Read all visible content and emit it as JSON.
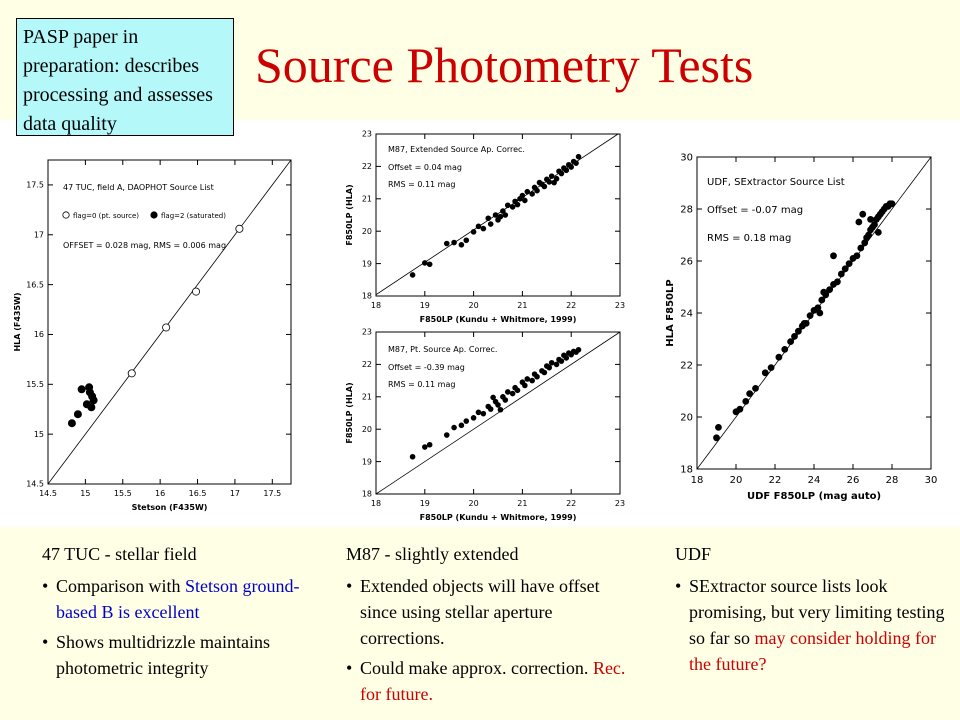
{
  "title": "Source Photometry Tests",
  "note": "PASP paper in preparation: describes processing and assesses data quality",
  "columns": [
    {
      "heading": "47 TUC - stellar field",
      "bullets": [
        {
          "parts": [
            {
              "text": "Comparison with "
            },
            {
              "text": "Stetson ground-based B is excellent",
              "color": "blue"
            }
          ]
        },
        {
          "parts": [
            {
              "text": "Shows multidrizzle maintains photometric integrity"
            }
          ]
        }
      ]
    },
    {
      "heading": "M87 - slightly extended",
      "bullets": [
        {
          "parts": [
            {
              "text": "Extended objects will have offset since using stellar aperture corrections."
            }
          ]
        },
        {
          "parts": [
            {
              "text": "Could make approx. correction. "
            },
            {
              "text": "Rec. for future.",
              "color": "red"
            }
          ]
        }
      ]
    },
    {
      "heading": "UDF",
      "bullets": [
        {
          "parts": [
            {
              "text": "SExtractor source lists look promising, but very limiting testing so far so "
            },
            {
              "text": "may consider holding for the future?",
              "color": "red"
            }
          ]
        }
      ]
    }
  ],
  "chart_data": [
    {
      "type": "scatter",
      "xlabel": "Stetson (F435W)",
      "ylabel": "HLA (F435W)",
      "xlim": [
        14.5,
        17.75
      ],
      "ylim": [
        14.5,
        17.75
      ],
      "xticks": [
        14.5,
        15,
        15.5,
        16,
        16.5,
        17,
        17.5
      ],
      "yticks": [
        14.5,
        15,
        15.5,
        16,
        16.5,
        17,
        17.5
      ],
      "annotations": [
        "47 TUC, field A, DAOPHOT Source List",
        "OFFSET = 0.028 mag, RMS = 0.006 mag"
      ],
      "legend": [
        "flag=0 (pt. source)",
        "flag=2 (saturated)"
      ],
      "series": [
        {
          "name": "flag=0 (pt. source)",
          "marker": "open",
          "points": [
            [
              15.62,
              15.61
            ],
            [
              16.08,
              16.07
            ],
            [
              16.48,
              16.43
            ],
            [
              17.06,
              17.06
            ]
          ]
        },
        {
          "name": "flag=2 (saturated)",
          "marker": "filled",
          "points": [
            [
              14.82,
              15.11
            ],
            [
              14.9,
              15.2
            ],
            [
              14.95,
              15.45
            ],
            [
              15.02,
              15.3
            ],
            [
              15.05,
              15.47
            ],
            [
              15.06,
              15.42
            ],
            [
              15.09,
              15.38
            ],
            [
              15.11,
              15.34
            ],
            [
              15.08,
              15.27
            ]
          ]
        }
      ]
    },
    {
      "type": "scatter",
      "xlabel": "F850LP (Kundu + Whitmore, 1999)",
      "ylabel": "F850LP (HLA)",
      "xlim": [
        18,
        23
      ],
      "ylim": [
        18,
        23
      ],
      "xticks": [
        18,
        19,
        20,
        21,
        22,
        23
      ],
      "yticks": [
        18,
        19,
        20,
        21,
        22,
        23
      ],
      "annotations": [
        "M87, Extended Source Ap. Correc.",
        "Offset = 0.04 mag",
        "RMS = 0.11 mag"
      ],
      "offset": 0.04,
      "series": [
        {
          "marker": "filled",
          "points": [
            [
              18.75,
              18.65
            ],
            [
              19.0,
              19.02
            ],
            [
              19.1,
              18.98
            ],
            [
              19.45,
              19.62
            ],
            [
              19.6,
              19.65
            ],
            [
              19.75,
              19.58
            ],
            [
              19.85,
              19.72
            ],
            [
              20.0,
              19.98
            ],
            [
              20.1,
              20.15
            ],
            [
              20.2,
              20.08
            ],
            [
              20.3,
              20.4
            ],
            [
              20.35,
              20.22
            ],
            [
              20.45,
              20.5
            ],
            [
              20.5,
              20.35
            ],
            [
              20.6,
              20.62
            ],
            [
              20.65,
              20.5
            ],
            [
              20.7,
              20.8
            ],
            [
              20.8,
              20.75
            ],
            [
              20.85,
              20.92
            ],
            [
              20.9,
              20.82
            ],
            [
              21.0,
              21.1
            ],
            [
              21.05,
              20.95
            ],
            [
              21.1,
              21.22
            ],
            [
              21.2,
              21.15
            ],
            [
              21.25,
              21.35
            ],
            [
              21.3,
              21.25
            ],
            [
              21.4,
              21.45
            ],
            [
              21.45,
              21.38
            ],
            [
              21.5,
              21.6
            ],
            [
              21.55,
              21.52
            ],
            [
              21.6,
              21.7
            ],
            [
              21.7,
              21.62
            ],
            [
              21.75,
              21.85
            ],
            [
              21.8,
              21.78
            ],
            [
              21.85,
              21.95
            ],
            [
              21.9,
              21.88
            ],
            [
              21.95,
              22.05
            ],
            [
              22.0,
              21.98
            ],
            [
              22.05,
              22.15
            ],
            [
              22.1,
              22.1
            ],
            [
              22.15,
              22.3
            ],
            [
              21.65,
              21.5
            ],
            [
              21.35,
              21.5
            ],
            [
              20.95,
              21.0
            ],
            [
              20.55,
              20.45
            ]
          ]
        }
      ]
    },
    {
      "type": "scatter",
      "xlabel": "F850LP (Kundu + Whitmore, 1999)",
      "ylabel": "F850LP (HLA)",
      "xlim": [
        18,
        23
      ],
      "ylim": [
        18,
        23
      ],
      "xticks": [
        18,
        19,
        20,
        21,
        22,
        23
      ],
      "yticks": [
        18,
        19,
        20,
        21,
        22,
        23
      ],
      "annotations": [
        "M87, Pt. Source Ap. Correc.",
        "Offset = -0.39 mag",
        "RMS = 0.11 mag"
      ],
      "offset": 0,
      "series": [
        {
          "marker": "filled",
          "points": [
            [
              18.75,
              19.15
            ],
            [
              19.0,
              19.45
            ],
            [
              19.1,
              19.52
            ],
            [
              19.45,
              19.82
            ],
            [
              19.6,
              20.05
            ],
            [
              19.75,
              20.12
            ],
            [
              19.85,
              20.25
            ],
            [
              20.0,
              20.35
            ],
            [
              20.1,
              20.52
            ],
            [
              20.2,
              20.48
            ],
            [
              20.3,
              20.7
            ],
            [
              20.35,
              20.62
            ],
            [
              20.45,
              20.85
            ],
            [
              20.5,
              20.75
            ],
            [
              20.6,
              21.0
            ],
            [
              20.65,
              20.9
            ],
            [
              20.7,
              21.15
            ],
            [
              20.8,
              21.1
            ],
            [
              20.85,
              21.28
            ],
            [
              20.9,
              21.2
            ],
            [
              21.0,
              21.45
            ],
            [
              21.05,
              21.35
            ],
            [
              21.1,
              21.55
            ],
            [
              21.2,
              21.5
            ],
            [
              21.25,
              21.7
            ],
            [
              21.3,
              21.62
            ],
            [
              21.4,
              21.8
            ],
            [
              21.45,
              21.75
            ],
            [
              21.5,
              21.95
            ],
            [
              21.55,
              21.9
            ],
            [
              21.6,
              22.05
            ],
            [
              21.7,
              22.0
            ],
            [
              21.75,
              22.15
            ],
            [
              21.8,
              22.1
            ],
            [
              21.85,
              22.28
            ],
            [
              21.9,
              22.2
            ],
            [
              21.95,
              22.35
            ],
            [
              22.0,
              22.3
            ],
            [
              22.05,
              22.4
            ],
            [
              22.1,
              22.38
            ],
            [
              22.15,
              22.45
            ],
            [
              20.4,
              20.98
            ],
            [
              20.55,
              20.6
            ]
          ]
        }
      ]
    },
    {
      "type": "scatter",
      "xlabel": "UDF F850LP (mag auto)",
      "ylabel": "HLA F850LP",
      "xlim": [
        18,
        30
      ],
      "ylim": [
        18,
        30
      ],
      "xticks": [
        18,
        20,
        22,
        24,
        26,
        28,
        30
      ],
      "yticks": [
        18,
        20,
        22,
        24,
        26,
        28,
        30
      ],
      "annotations": [
        "UDF, SExtractor Source List",
        "Offset = -0.07 mag",
        "RMS = 0.18 mag"
      ],
      "offset": 0,
      "series": [
        {
          "marker": "filled",
          "points": [
            [
              19.0,
              19.2
            ],
            [
              19.1,
              19.6
            ],
            [
              20.0,
              20.2
            ],
            [
              20.2,
              20.3
            ],
            [
              20.5,
              20.6
            ],
            [
              20.7,
              20.9
            ],
            [
              21.0,
              21.1
            ],
            [
              21.5,
              21.7
            ],
            [
              21.8,
              21.9
            ],
            [
              22.2,
              22.3
            ],
            [
              22.5,
              22.6
            ],
            [
              22.8,
              22.9
            ],
            [
              23.0,
              23.1
            ],
            [
              23.2,
              23.3
            ],
            [
              23.4,
              23.5
            ],
            [
              23.6,
              23.6
            ],
            [
              23.8,
              23.9
            ],
            [
              24.0,
              24.1
            ],
            [
              24.2,
              24.2
            ],
            [
              24.4,
              24.5
            ],
            [
              24.6,
              24.7
            ],
            [
              24.8,
              24.9
            ],
            [
              25.0,
              25.1
            ],
            [
              25.2,
              25.2
            ],
            [
              25.4,
              25.5
            ],
            [
              25.6,
              25.7
            ],
            [
              25.8,
              25.9
            ],
            [
              26.0,
              26.1
            ],
            [
              26.2,
              26.2
            ],
            [
              26.4,
              26.5
            ],
            [
              26.6,
              26.7
            ],
            [
              26.7,
              26.9
            ],
            [
              26.8,
              27.0
            ],
            [
              26.9,
              27.2
            ],
            [
              27.0,
              27.3
            ],
            [
              27.1,
              27.4
            ],
            [
              27.2,
              27.6
            ],
            [
              27.3,
              27.7
            ],
            [
              27.4,
              27.8
            ],
            [
              27.5,
              27.9
            ],
            [
              27.6,
              28.0
            ],
            [
              27.7,
              28.1
            ],
            [
              27.8,
              28.1
            ],
            [
              27.9,
              28.2
            ],
            [
              28.0,
              28.2
            ],
            [
              26.5,
              27.8
            ],
            [
              26.3,
              27.5
            ],
            [
              25.0,
              26.2
            ],
            [
              24.3,
              24.0
            ],
            [
              24.5,
              24.8
            ],
            [
              23.5,
              23.6
            ],
            [
              27.9,
              28.2
            ],
            [
              27.3,
              27.1
            ],
            [
              26.9,
              27.6
            ]
          ]
        }
      ]
    }
  ]
}
